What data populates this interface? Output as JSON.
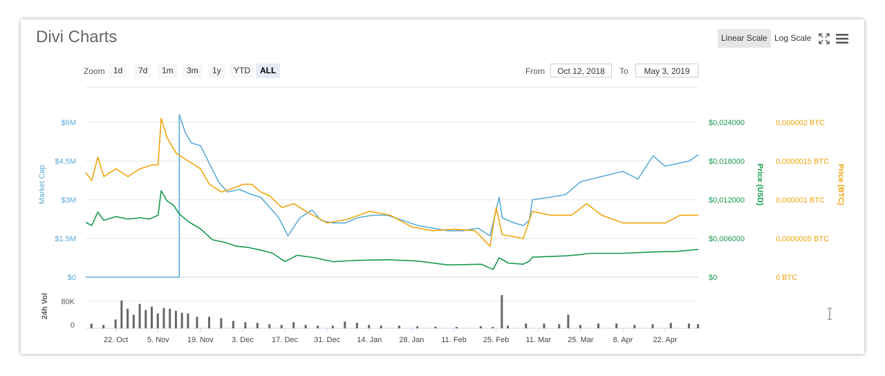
{
  "header": {
    "title": "Divi Charts",
    "linear_scale_label": "Linear Scale",
    "log_scale_label": "Log Scale",
    "active_scale": "linear"
  },
  "zoom": {
    "label": "Zoom",
    "buttons": [
      "1d",
      "7d",
      "1m",
      "3m",
      "1y",
      "YTD",
      "ALL"
    ],
    "active": "ALL"
  },
  "range": {
    "from_label": "From",
    "from_value": "Oct 12, 2018",
    "to_label": "To",
    "to_value": "May 3, 2019"
  },
  "colors": {
    "market_cap": "#5aabd9",
    "price_usd": "#14994f",
    "price_btc": "#f0a30a",
    "volume": "#666666",
    "grid": "#e6e6e6"
  },
  "chart_data": {
    "type": "line",
    "x_axis": {
      "start": "2018-10-12",
      "end": "2019-05-03",
      "tick_labels": [
        "22. Oct",
        "5. Nov",
        "19. Nov",
        "3. Dec",
        "17. Dec",
        "31. Dec",
        "14. Jan",
        "28. Jan",
        "11. Feb",
        "25. Feb",
        "11. Mar",
        "25. Mar",
        "8. Apr",
        "22. Apr"
      ],
      "tick_dates": [
        "2018-10-22",
        "2018-11-05",
        "2018-11-19",
        "2018-12-03",
        "2018-12-17",
        "2018-12-31",
        "2019-01-14",
        "2019-01-28",
        "2019-02-11",
        "2019-02-25",
        "2019-03-11",
        "2019-03-25",
        "2019-04-08",
        "2019-04-22"
      ]
    },
    "y_axis_market_cap": {
      "title": "Market Cap",
      "ylim": [
        0,
        6000000
      ],
      "tick_labels": [
        "$0",
        "$1.5M",
        "$3M",
        "$4.5M",
        "$6M"
      ]
    },
    "y_axis_price_usd": {
      "title": "Price (USD)",
      "ylim": [
        0,
        0.024
      ],
      "tick_labels": [
        "$0",
        "$0,006000",
        "$0,012000",
        "$0,018000",
        "$0,024000"
      ]
    },
    "y_axis_price_btc": {
      "title": "Price (BTC)",
      "ylim": [
        0,
        2e-06
      ],
      "tick_labels": [
        "0 BTC",
        "0,0000005 BTC",
        "0,000001 BTC",
        "0,0000015 BTC",
        "0,000002 BTC"
      ]
    },
    "y_axis_volume": {
      "title": "24h Vol",
      "ylim": [
        0,
        100000
      ],
      "tick_labels": [
        "0",
        "80K"
      ]
    },
    "series": [
      {
        "key": "market_cap",
        "axis": "market_cap",
        "points": [
          [
            "2018-10-12",
            0
          ],
          [
            "2018-11-12",
            0
          ],
          [
            "2018-11-12",
            6300000
          ],
          [
            "2018-11-14",
            5600000
          ],
          [
            "2018-11-16",
            5200000
          ],
          [
            "2018-11-19",
            5100000
          ],
          [
            "2018-11-22",
            4400000
          ],
          [
            "2018-11-25",
            3700000
          ],
          [
            "2018-11-28",
            3300000
          ],
          [
            "2018-12-02",
            3400000
          ],
          [
            "2018-12-06",
            3200000
          ],
          [
            "2018-12-09",
            3100000
          ],
          [
            "2018-12-12",
            2700000
          ],
          [
            "2018-12-15",
            2300000
          ],
          [
            "2018-12-18",
            1600000
          ],
          [
            "2018-12-22",
            2300000
          ],
          [
            "2018-12-26",
            2600000
          ],
          [
            "2018-12-29",
            2200000
          ],
          [
            "2019-01-02",
            2100000
          ],
          [
            "2019-01-06",
            2100000
          ],
          [
            "2019-01-10",
            2300000
          ],
          [
            "2019-01-15",
            2400000
          ],
          [
            "2019-01-20",
            2400000
          ],
          [
            "2019-01-25",
            2200000
          ],
          [
            "2019-01-30",
            2000000
          ],
          [
            "2019-02-04",
            1900000
          ],
          [
            "2019-02-09",
            1800000
          ],
          [
            "2019-02-14",
            1800000
          ],
          [
            "2019-02-19",
            1900000
          ],
          [
            "2019-02-23",
            1600000
          ],
          [
            "2019-02-26",
            3100000
          ],
          [
            "2019-02-27",
            2300000
          ],
          [
            "2019-03-03",
            2100000
          ],
          [
            "2019-03-06",
            2000000
          ],
          [
            "2019-03-08",
            2200000
          ],
          [
            "2019-03-09",
            3000000
          ],
          [
            "2019-03-15",
            3100000
          ],
          [
            "2019-03-20",
            3200000
          ],
          [
            "2019-03-25",
            3700000
          ],
          [
            "2019-04-01",
            3900000
          ],
          [
            "2019-04-08",
            4100000
          ],
          [
            "2019-04-13",
            3800000
          ],
          [
            "2019-04-18",
            4700000
          ],
          [
            "2019-04-22",
            4300000
          ],
          [
            "2019-04-26",
            4400000
          ],
          [
            "2019-04-30",
            4500000
          ],
          [
            "2019-05-03",
            4750000
          ]
        ]
      },
      {
        "key": "price_usd",
        "axis": "price_usd",
        "points": [
          [
            "2018-10-12",
            0.0085
          ],
          [
            "2018-10-14",
            0.008
          ],
          [
            "2018-10-16",
            0.0101
          ],
          [
            "2018-10-18",
            0.0088
          ],
          [
            "2018-10-22",
            0.0094
          ],
          [
            "2018-10-26",
            0.009
          ],
          [
            "2018-10-30",
            0.0092
          ],
          [
            "2018-11-02",
            0.009
          ],
          [
            "2018-11-05",
            0.0096
          ],
          [
            "2018-11-06",
            0.0134
          ],
          [
            "2018-11-08",
            0.0118
          ],
          [
            "2018-11-10",
            0.0112
          ],
          [
            "2018-11-12",
            0.0098
          ],
          [
            "2018-11-15",
            0.0086
          ],
          [
            "2018-11-19",
            0.0075
          ],
          [
            "2018-11-23",
            0.0058
          ],
          [
            "2018-11-27",
            0.0054
          ],
          [
            "2018-12-01",
            0.0048
          ],
          [
            "2018-12-05",
            0.0046
          ],
          [
            "2018-12-09",
            0.0042
          ],
          [
            "2018-12-13",
            0.0037
          ],
          [
            "2018-12-17",
            0.0024
          ],
          [
            "2018-12-21",
            0.0034
          ],
          [
            "2018-12-27",
            0.003
          ],
          [
            "2019-01-02",
            0.0024
          ],
          [
            "2019-01-10",
            0.0026
          ],
          [
            "2019-01-20",
            0.0027
          ],
          [
            "2019-01-30",
            0.0025
          ],
          [
            "2019-02-09",
            0.0019
          ],
          [
            "2019-02-20",
            0.002
          ],
          [
            "2019-02-24",
            0.0012
          ],
          [
            "2019-02-26",
            0.003
          ],
          [
            "2019-03-01",
            0.0022
          ],
          [
            "2019-03-06",
            0.002
          ],
          [
            "2019-03-08",
            0.0025
          ],
          [
            "2019-03-09",
            0.0031
          ],
          [
            "2019-03-20",
            0.0033
          ],
          [
            "2019-03-25",
            0.0035
          ],
          [
            "2019-03-28",
            0.0037
          ],
          [
            "2019-04-08",
            0.0037
          ],
          [
            "2019-04-18",
            0.0039
          ],
          [
            "2019-04-26",
            0.004
          ],
          [
            "2019-05-03",
            0.0043
          ]
        ]
      },
      {
        "key": "price_btc",
        "axis": "price_btc",
        "points": [
          [
            "2018-10-12",
            1.35e-06
          ],
          [
            "2018-10-14",
            1.25e-06
          ],
          [
            "2018-10-16",
            1.55e-06
          ],
          [
            "2018-10-18",
            1.3e-06
          ],
          [
            "2018-10-22",
            1.4e-06
          ],
          [
            "2018-10-26",
            1.3e-06
          ],
          [
            "2018-10-30",
            1.4e-06
          ],
          [
            "2018-11-03",
            1.45e-06
          ],
          [
            "2018-11-05",
            1.45e-06
          ],
          [
            "2018-11-06",
            2.05e-06
          ],
          [
            "2018-11-08",
            1.8e-06
          ],
          [
            "2018-11-11",
            1.6e-06
          ],
          [
            "2018-11-15",
            1.5e-06
          ],
          [
            "2018-11-19",
            1.4e-06
          ],
          [
            "2018-11-22",
            1.2e-06
          ],
          [
            "2018-11-26",
            1.1e-06
          ],
          [
            "2018-11-30",
            1.15e-06
          ],
          [
            "2018-12-03",
            1.2e-06
          ],
          [
            "2018-12-06",
            1.2e-06
          ],
          [
            "2018-12-09",
            1.1e-06
          ],
          [
            "2018-12-12",
            1.05e-06
          ],
          [
            "2018-12-16",
            9e-07
          ],
          [
            "2018-12-20",
            9.5e-07
          ],
          [
            "2018-12-24",
            8.5e-07
          ],
          [
            "2018-12-31",
            7e-07
          ],
          [
            "2019-01-07",
            7.5e-07
          ],
          [
            "2019-01-14",
            8.5e-07
          ],
          [
            "2019-01-21",
            8e-07
          ],
          [
            "2019-01-28",
            6.5e-07
          ],
          [
            "2019-02-04",
            6e-07
          ],
          [
            "2019-02-11",
            6.2e-07
          ],
          [
            "2019-02-18",
            6e-07
          ],
          [
            "2019-02-23",
            4e-07
          ],
          [
            "2019-02-25",
            9e-07
          ],
          [
            "2019-02-27",
            5.5e-07
          ],
          [
            "2019-03-06",
            5e-07
          ],
          [
            "2019-03-09",
            8.5e-07
          ],
          [
            "2019-03-15",
            8e-07
          ],
          [
            "2019-03-22",
            8e-07
          ],
          [
            "2019-03-27",
            9.5e-07
          ],
          [
            "2019-04-01",
            8e-07
          ],
          [
            "2019-04-08",
            7e-07
          ],
          [
            "2019-04-15",
            7e-07
          ],
          [
            "2019-04-22",
            7e-07
          ],
          [
            "2019-04-27",
            8e-07
          ],
          [
            "2019-05-03",
            8e-07
          ]
        ]
      }
    ],
    "volume": {
      "axis": "volume",
      "points": [
        [
          "2018-10-14",
          14000
        ],
        [
          "2018-10-18",
          10000
        ],
        [
          "2018-10-22",
          26000
        ],
        [
          "2018-10-24",
          82000
        ],
        [
          "2018-10-26",
          58000
        ],
        [
          "2018-10-28",
          40000
        ],
        [
          "2018-10-30",
          72000
        ],
        [
          "2018-11-01",
          54000
        ],
        [
          "2018-11-03",
          64000
        ],
        [
          "2018-11-05",
          44000
        ],
        [
          "2018-11-07",
          60000
        ],
        [
          "2018-11-09",
          58000
        ],
        [
          "2018-11-11",
          52000
        ],
        [
          "2018-11-13",
          46000
        ],
        [
          "2018-11-15",
          44000
        ],
        [
          "2018-11-18",
          34000
        ],
        [
          "2018-11-22",
          34000
        ],
        [
          "2018-11-26",
          30000
        ],
        [
          "2018-11-30",
          22000
        ],
        [
          "2018-12-04",
          18000
        ],
        [
          "2018-12-08",
          16000
        ],
        [
          "2018-12-12",
          12000
        ],
        [
          "2018-12-16",
          10000
        ],
        [
          "2018-12-20",
          18000
        ],
        [
          "2018-12-24",
          10000
        ],
        [
          "2018-12-28",
          8000
        ],
        [
          "2019-01-02",
          8000
        ],
        [
          "2019-01-06",
          20000
        ],
        [
          "2019-01-10",
          16000
        ],
        [
          "2019-01-14",
          10000
        ],
        [
          "2019-01-18",
          8000
        ],
        [
          "2019-01-24",
          8000
        ],
        [
          "2019-01-30",
          6000
        ],
        [
          "2019-02-05",
          5000
        ],
        [
          "2019-02-12",
          4000
        ],
        [
          "2019-02-20",
          6000
        ],
        [
          "2019-02-24",
          4000
        ],
        [
          "2019-02-27",
          98000
        ],
        [
          "2019-03-01",
          8000
        ],
        [
          "2019-03-07",
          14000
        ],
        [
          "2019-03-13",
          14000
        ],
        [
          "2019-03-18",
          12000
        ],
        [
          "2019-03-21",
          40000
        ],
        [
          "2019-03-25",
          10000
        ],
        [
          "2019-03-31",
          14000
        ],
        [
          "2019-04-06",
          14000
        ],
        [
          "2019-04-12",
          10000
        ],
        [
          "2019-04-18",
          12000
        ],
        [
          "2019-04-24",
          16000
        ],
        [
          "2019-04-30",
          14000
        ],
        [
          "2019-05-03",
          12000
        ]
      ]
    },
    "grid": true
  }
}
